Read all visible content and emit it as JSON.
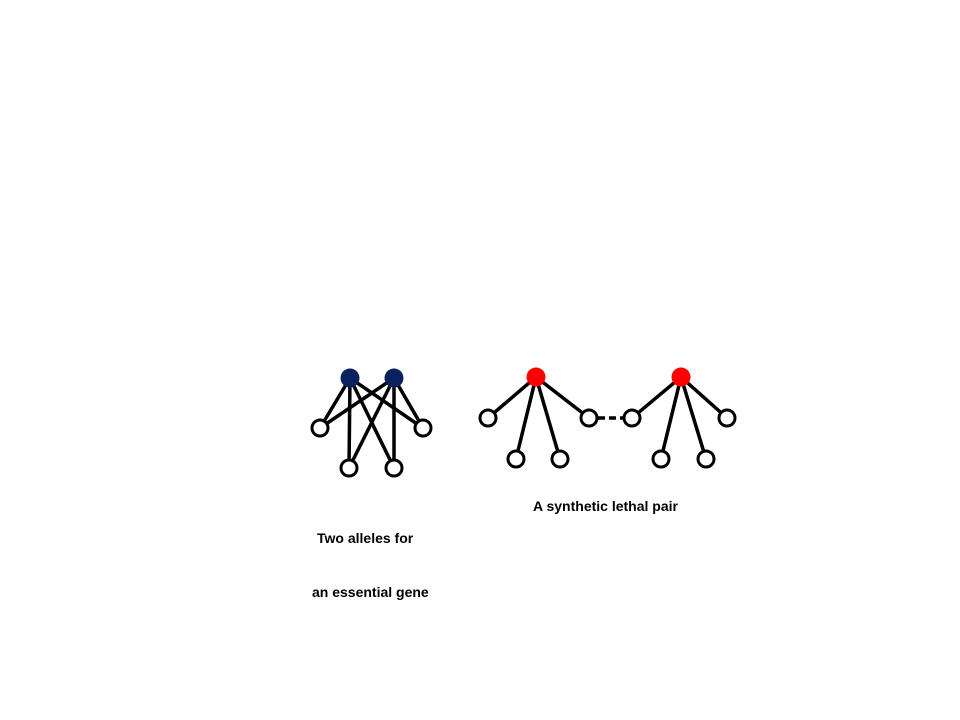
{
  "colors": {
    "essential_allele_node": "#0a2160",
    "synthetic_lethal_node": "#ff0000",
    "edge": "#000000",
    "neighbor_node_fill": "#ffffff"
  },
  "captions": {
    "essential_gene_line1": "Two alleles for",
    "essential_gene_line2": "an essential gene",
    "synthetic_lethal": "A synthetic lethal pair"
  }
}
